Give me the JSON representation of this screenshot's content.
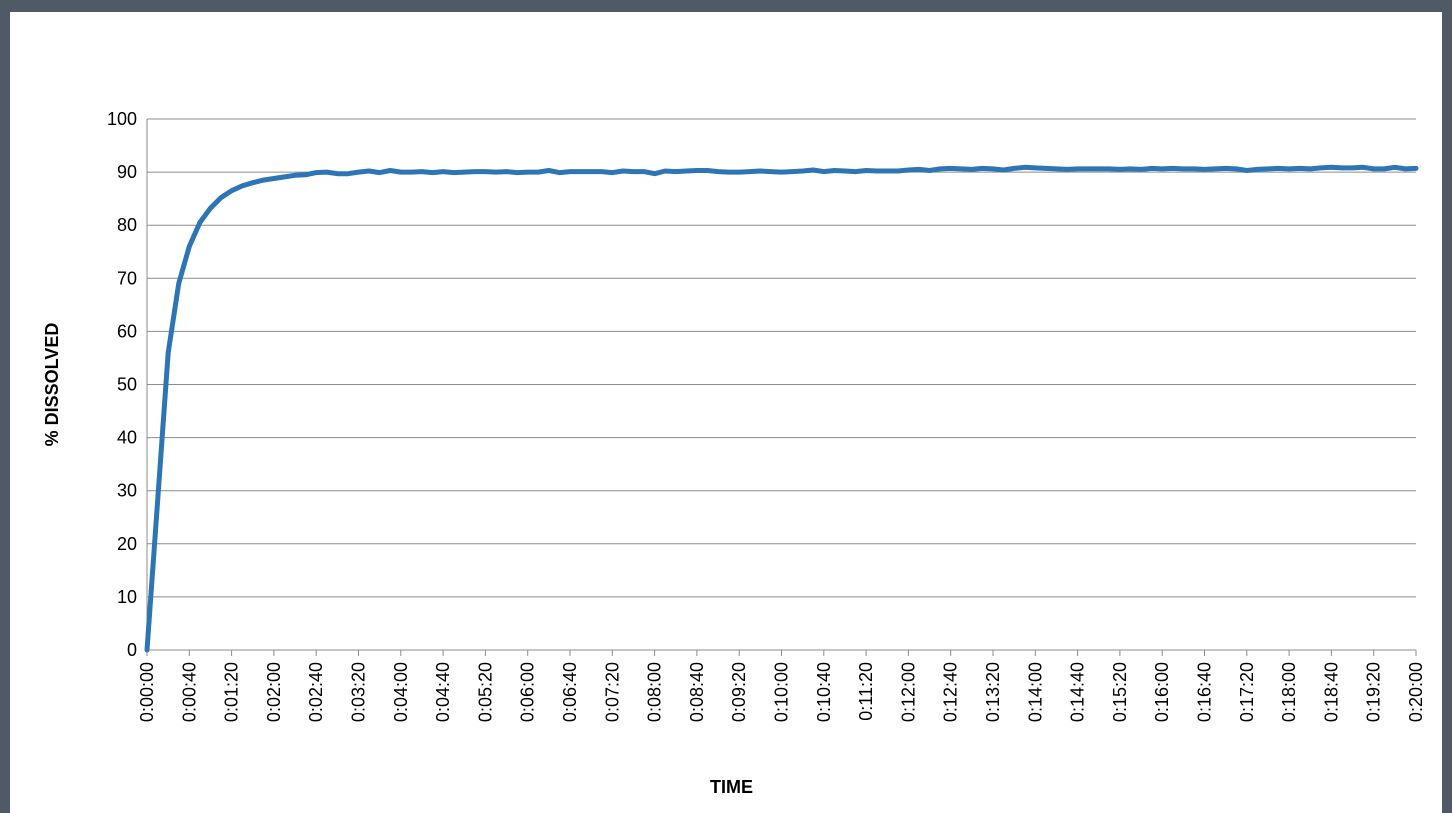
{
  "chart_data": {
    "type": "line",
    "title": "",
    "xlabel": "TIME",
    "ylabel": "% DISSOLVED",
    "ylim": [
      0,
      100
    ],
    "y_ticks": [
      0,
      10,
      20,
      30,
      40,
      50,
      60,
      70,
      80,
      90,
      100
    ],
    "x_unit": "seconds",
    "x_range_seconds": [
      0,
      1200
    ],
    "x_tick_labels": [
      "0:00:00",
      "0:00:40",
      "0:01:20",
      "0:02:00",
      "0:02:40",
      "0:03:20",
      "0:04:00",
      "0:04:40",
      "0:05:20",
      "0:06:00",
      "0:06:40",
      "0:07:20",
      "0:08:00",
      "0:08:40",
      "0:09:20",
      "0:10:00",
      "0:10:40",
      "0:11:20",
      "0:12:00",
      "0:12:40",
      "0:13:20",
      "0:14:00",
      "0:14:40",
      "0:15:20",
      "0:16:00",
      "0:16:40",
      "0:17:20",
      "0:18:00",
      "0:18:40",
      "0:19:20",
      "0:20:00"
    ],
    "grid": true,
    "legend": "none",
    "series_color": "#2e75b6",
    "series": [
      {
        "name": "",
        "x": [
          0,
          10,
          20,
          30,
          40,
          50,
          60,
          70,
          80,
          90,
          100,
          110,
          120,
          130,
          140,
          150,
          160,
          170,
          180,
          190,
          200,
          210,
          220,
          230,
          240,
          250,
          260,
          270,
          280,
          290,
          300,
          310,
          320,
          330,
          340,
          350,
          360,
          370,
          380,
          390,
          400,
          410,
          420,
          430,
          440,
          450,
          460,
          470,
          480,
          490,
          500,
          510,
          520,
          530,
          540,
          550,
          560,
          570,
          580,
          590,
          600,
          610,
          620,
          630,
          640,
          650,
          660,
          670,
          680,
          690,
          700,
          710,
          720,
          730,
          740,
          750,
          760,
          770,
          780,
          790,
          800,
          810,
          820,
          830,
          840,
          850,
          860,
          870,
          880,
          890,
          900,
          910,
          920,
          930,
          940,
          950,
          960,
          970,
          980,
          990,
          1000,
          1010,
          1020,
          1030,
          1040,
          1050,
          1060,
          1070,
          1080,
          1090,
          1100,
          1110,
          1120,
          1130,
          1140,
          1150,
          1160,
          1170,
          1180,
          1190,
          1200
        ],
        "y": [
          0,
          28,
          56,
          69,
          76,
          80.5,
          83.2,
          85.2,
          86.5,
          87.4,
          88,
          88.5,
          88.8,
          89.1,
          89.4,
          89.5,
          89.9,
          90.0,
          89.7,
          89.7,
          90.0,
          90.2,
          89.9,
          90.3,
          90.0,
          90.0,
          90.1,
          89.9,
          90.1,
          89.9,
          90.0,
          90.1,
          90.1,
          90.0,
          90.1,
          89.9,
          90.0,
          90.0,
          90.3,
          89.9,
          90.1,
          90.1,
          90.1,
          90.1,
          89.9,
          90.2,
          90.1,
          90.1,
          89.7,
          90.2,
          90.1,
          90.2,
          90.3,
          90.3,
          90.1,
          90.0,
          90.0,
          90.1,
          90.2,
          90.1,
          90.0,
          90.1,
          90.2,
          90.4,
          90.1,
          90.3,
          90.2,
          90.1,
          90.3,
          90.2,
          90.2,
          90.2,
          90.4,
          90.5,
          90.3,
          90.6,
          90.7,
          90.6,
          90.5,
          90.7,
          90.6,
          90.4,
          90.7,
          90.9,
          90.8,
          90.7,
          90.6,
          90.5,
          90.6,
          90.6,
          90.6,
          90.6,
          90.5,
          90.6,
          90.5,
          90.7,
          90.6,
          90.7,
          90.6,
          90.6,
          90.5,
          90.6,
          90.7,
          90.6,
          90.3,
          90.5,
          90.6,
          90.7,
          90.6,
          90.7,
          90.6,
          90.8,
          90.9,
          90.8,
          90.8,
          90.9,
          90.6,
          90.6,
          90.9,
          90.6,
          90.7
        ]
      }
    ]
  }
}
